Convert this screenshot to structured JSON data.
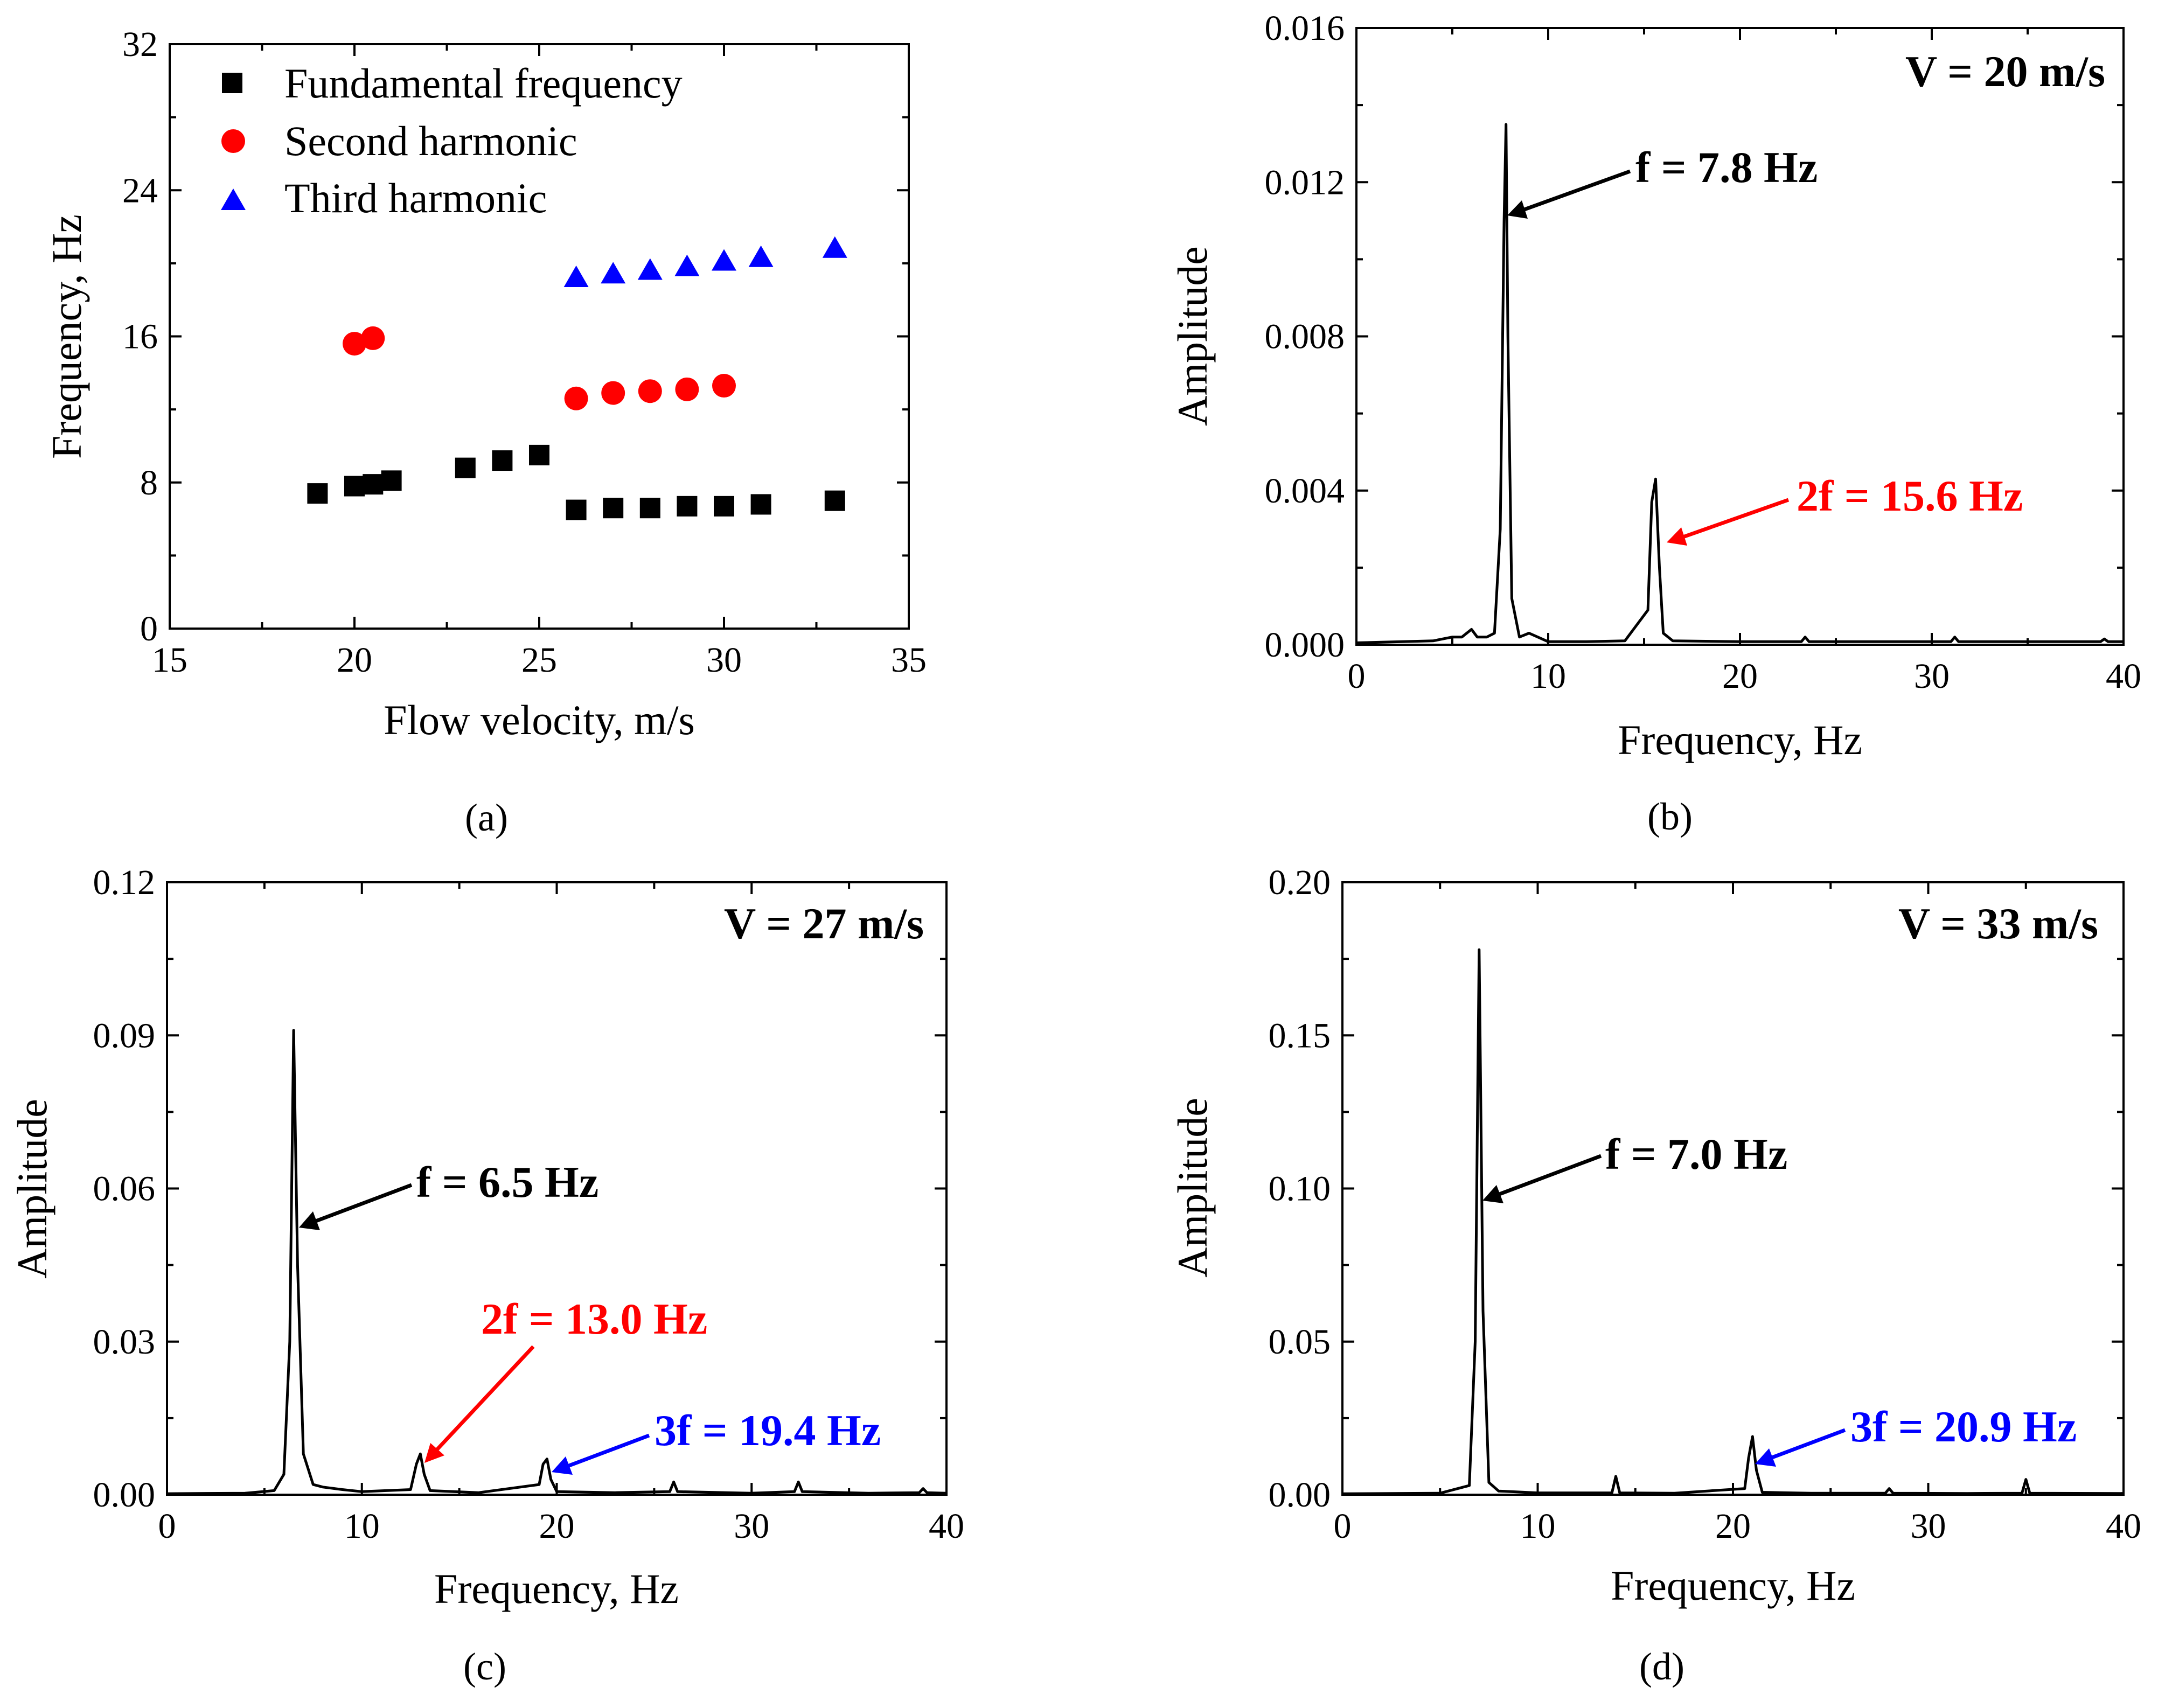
{
  "chart_data": [
    {
      "id": "a",
      "type": "scatter",
      "caption": "(a)",
      "xlabel": "Flow velocity, m/s",
      "ylabel": "Frequency, Hz",
      "xlim": [
        15,
        35
      ],
      "ylim": [
        0,
        32
      ],
      "xticks": [
        "15",
        "20",
        "25",
        "30",
        "35"
      ],
      "yticks": [
        "0",
        "8",
        "16",
        "24",
        "32"
      ],
      "legend_position": "top-left",
      "series": [
        {
          "name": "Fundamental frequency",
          "marker": "square",
          "color": "#000000",
          "x": [
            19,
            20,
            20.5,
            21,
            23,
            24,
            25,
            26,
            27,
            28,
            29,
            30,
            31,
            33
          ],
          "y": [
            7.4,
            7.8,
            7.9,
            8.1,
            8.8,
            9.2,
            9.5,
            6.5,
            6.6,
            6.6,
            6.7,
            6.7,
            6.8,
            7.0
          ]
        },
        {
          "name": "Second harmonic",
          "marker": "circle",
          "color": "#ff0000",
          "x": [
            20,
            20.5,
            26,
            27,
            28,
            29,
            30
          ],
          "y": [
            15.6,
            15.9,
            12.6,
            12.9,
            13.0,
            13.1,
            13.3
          ]
        },
        {
          "name": "Third harmonic",
          "marker": "triangle",
          "color": "#0000ff",
          "x": [
            26,
            27,
            28,
            29,
            30,
            31,
            33
          ],
          "y": [
            19.2,
            19.4,
            19.6,
            19.8,
            20.1,
            20.3,
            20.8
          ]
        }
      ]
    },
    {
      "id": "b",
      "type": "line",
      "caption": "(b)",
      "condition_label": "V = 20 m/s",
      "xlabel": "Frequency, Hz",
      "ylabel": "Amplitude",
      "xlim": [
        0,
        40
      ],
      "ylim": [
        0,
        0.016
      ],
      "xticks": [
        "0",
        "10",
        "20",
        "30",
        "40"
      ],
      "yticks": [
        "0.000",
        "0.004",
        "0.008",
        "0.012",
        "0.016"
      ],
      "series": [
        {
          "color": "#000000",
          "x": [
            0,
            4,
            5,
            5.5,
            6,
            6.3,
            6.8,
            7.2,
            7.5,
            7.7,
            7.8,
            7.9,
            8.1,
            8.5,
            9.0,
            10,
            12,
            14,
            15.2,
            15.4,
            15.6,
            15.8,
            16.0,
            16.5,
            20,
            23.2,
            23.4,
            23.6,
            28,
            31.0,
            31.2,
            31.4,
            35,
            38.8,
            39.0,
            39.2,
            40
          ],
          "y": [
            5e-05,
            0.0001,
            0.0002,
            0.0002,
            0.0004,
            0.0002,
            0.0002,
            0.0003,
            0.003,
            0.011,
            0.0135,
            0.008,
            0.0012,
            0.0002,
            0.0003,
            8e-05,
            8e-05,
            0.0001,
            0.0009,
            0.0037,
            0.0043,
            0.002,
            0.0003,
            0.0001,
            8e-05,
            8e-05,
            0.0002,
            8e-05,
            8e-05,
            8e-05,
            0.0002,
            8e-05,
            8e-05,
            8e-05,
            0.00015,
            8e-05,
            8e-05
          ]
        }
      ],
      "annotations": [
        {
          "text": "f = 7.8 Hz",
          "color": "#000000",
          "arrow_to": [
            7.8,
            0.0112
          ]
        },
        {
          "text": "2f = 15.6 Hz",
          "color": "#ff0000",
          "arrow_to": [
            15.8,
            0.0026
          ]
        }
      ]
    },
    {
      "id": "c",
      "type": "line",
      "caption": "(c)",
      "condition_label": "V = 27 m/s",
      "xlabel": "Frequency, Hz",
      "ylabel": "Amplitude",
      "xlim": [
        0,
        40
      ],
      "ylim": [
        0,
        0.12
      ],
      "xticks": [
        "0",
        "10",
        "20",
        "30",
        "40"
      ],
      "yticks": [
        "0.00",
        "0.03",
        "0.06",
        "0.09",
        "0.12"
      ],
      "series": [
        {
          "color": "#000000",
          "x": [
            0,
            4,
            5.5,
            6.0,
            6.3,
            6.5,
            6.7,
            7.0,
            7.5,
            8.0,
            9.0,
            10,
            12.5,
            12.8,
            13.0,
            13.2,
            13.5,
            16,
            19.1,
            19.3,
            19.5,
            19.7,
            20.0,
            23,
            25.8,
            26.0,
            26.2,
            30,
            32.2,
            32.4,
            32.6,
            36,
            38.6,
            38.8,
            39.0,
            40
          ],
          "y": [
            0.0002,
            0.0003,
            0.0008,
            0.004,
            0.03,
            0.091,
            0.045,
            0.008,
            0.002,
            0.0015,
            0.001,
            0.0006,
            0.001,
            0.006,
            0.008,
            0.004,
            0.0008,
            0.0004,
            0.002,
            0.006,
            0.007,
            0.003,
            0.0006,
            0.0004,
            0.0006,
            0.0025,
            0.0006,
            0.0003,
            0.0006,
            0.0025,
            0.0006,
            0.0003,
            0.0004,
            0.0012,
            0.0004,
            0.0003
          ]
        }
      ],
      "annotations": [
        {
          "text": "f = 6.5 Hz",
          "color": "#000000",
          "arrow_to": [
            6.7,
            0.0515
          ]
        },
        {
          "text": "2f = 13.0 Hz",
          "color": "#ff0000",
          "arrow_to": [
            13.2,
            0.0055
          ]
        },
        {
          "text": "3f = 19.4 Hz",
          "color": "#0000ff",
          "arrow_to": [
            19.7,
            0.0045
          ]
        }
      ]
    },
    {
      "id": "d",
      "type": "line",
      "caption": "(d)",
      "condition_label": "V = 33 m/s",
      "xlabel": "Frequency, Hz",
      "ylabel": "Amplitude",
      "xlim": [
        0,
        40
      ],
      "ylim": [
        0,
        0.2
      ],
      "xticks": [
        "0",
        "10",
        "20",
        "30",
        "40"
      ],
      "yticks": [
        "0.00",
        "0.05",
        "0.10",
        "0.15",
        "0.20"
      ],
      "series": [
        {
          "color": "#000000",
          "x": [
            0,
            5,
            6.5,
            6.8,
            7.0,
            7.2,
            7.5,
            8.0,
            10,
            13.8,
            14.0,
            14.2,
            17,
            20.6,
            20.8,
            21.0,
            21.2,
            21.5,
            24,
            27.8,
            28.0,
            28.2,
            32,
            34.8,
            35.0,
            35.2,
            40
          ],
          "y": [
            0.0003,
            0.0005,
            0.003,
            0.05,
            0.178,
            0.06,
            0.004,
            0.0012,
            0.0006,
            0.0006,
            0.006,
            0.0006,
            0.0005,
            0.002,
            0.012,
            0.019,
            0.008,
            0.0008,
            0.0005,
            0.0005,
            0.002,
            0.0005,
            0.0004,
            0.0005,
            0.005,
            0.0005,
            0.0004
          ]
        }
      ],
      "annotations": [
        {
          "text": "f = 7.0 Hz",
          "color": "#000000",
          "arrow_to": [
            7.2,
            0.1
          ]
        },
        {
          "text": "3f = 20.9 Hz",
          "color": "#0000ff",
          "arrow_to": [
            21.2,
            0.01
          ]
        }
      ]
    }
  ]
}
